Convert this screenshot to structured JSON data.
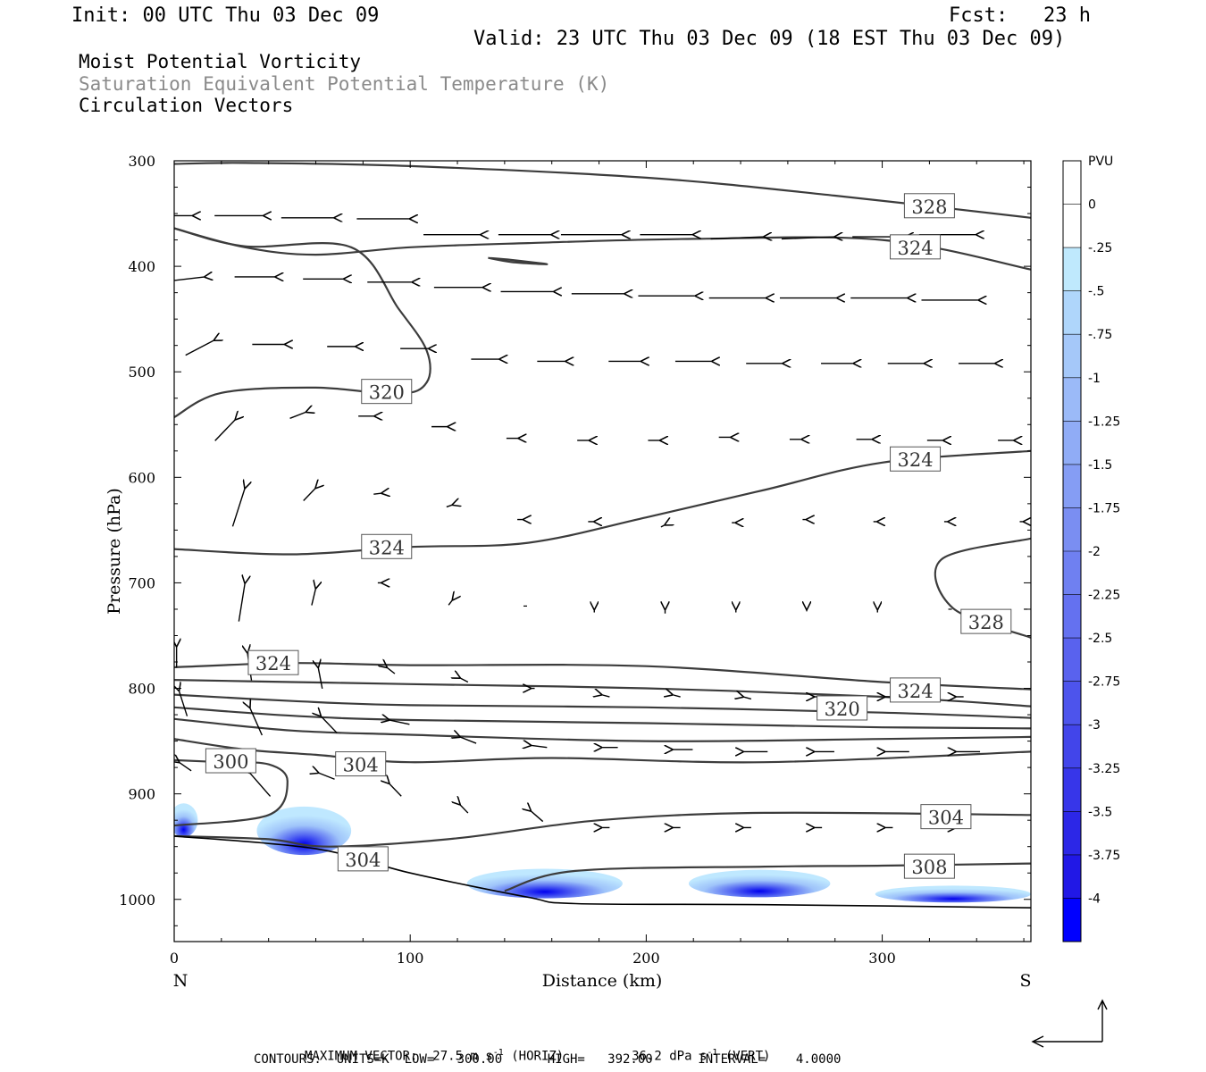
{
  "header": {
    "init": "Init: 00 UTC Thu 03 Dec 09",
    "fcst": "Fcst:   23 h",
    "valid": "Valid: 23 UTC Thu 03 Dec 09 (18 EST Thu 03 Dec 09)"
  },
  "fields": {
    "line1": "Moist Potential Vorticity",
    "line2": "Saturation Equivalent Potential Temperature (K)",
    "line3": "Circulation Vectors"
  },
  "footer": {
    "max_vector_label": "MAXIMUM VECTOR:",
    "max_h_val": "27.5 m s",
    "max_h_exp": "-1",
    "max_h_unit": "(HORIZ)",
    "max_v_val": "36.2 dPa s",
    "max_v_exp": "-1",
    "max_v_unit": "(VERT)",
    "contours": "CONTOURS:  UNITS=K  LOW=   300.00      HIGH=   392.00      INTERVAL=    4.0000"
  },
  "colors": {
    "contour": "#3c3c3c",
    "arrow": "#000000",
    "terrain": "#000000",
    "pv_light": "#b9e4ff",
    "pv_dark": "#0000ff"
  },
  "chart_data": {
    "type": "cross-section",
    "xlabel": "Distance (km)",
    "ylabel": "Pressure (hPa)",
    "xlim": [
      0,
      363
    ],
    "ylim": [
      1040,
      300
    ],
    "x_ticks": [
      0,
      100,
      200,
      300
    ],
    "y_ticks": [
      300,
      400,
      500,
      600,
      700,
      800,
      900,
      1000
    ],
    "x_end_labels": {
      "left": "N",
      "right": "S"
    },
    "colorbar": {
      "title": "PVU",
      "labels": [
        "0",
        "-.25",
        "-.5",
        "-.75",
        "-1",
        "-1.25",
        "-1.5",
        "-1.75",
        "-2",
        "-2.25",
        "-2.5",
        "-2.75",
        "-3",
        "-3.25",
        "-3.5",
        "-3.75",
        "-4"
      ],
      "colors": [
        "#ffffff",
        "#ffffff",
        "#bfe9fd",
        "#afd6fb",
        "#a5c8f9",
        "#9bbaf8",
        "#90acf6",
        "#859df4",
        "#7a8ef2",
        "#6f80f1",
        "#6471f0",
        "#5962ee",
        "#4d54ec",
        "#4245ea",
        "#3736e9",
        "#2c27e7",
        "#2118e6",
        "#0000ff"
      ]
    },
    "contour_labels": [
      {
        "text": "328",
        "x": 320,
        "p": 343
      },
      {
        "text": "324",
        "x": 314,
        "p": 382
      },
      {
        "text": "320",
        "x": 90,
        "p": 519
      },
      {
        "text": "324",
        "x": 314,
        "p": 583
      },
      {
        "text": "324",
        "x": 90,
        "p": 666
      },
      {
        "text": "328",
        "x": 344,
        "p": 737
      },
      {
        "text": "324",
        "x": 42,
        "p": 776
      },
      {
        "text": "324",
        "x": 314,
        "p": 802
      },
      {
        "text": "320",
        "x": 283,
        "p": 819
      },
      {
        "text": "300",
        "x": 24,
        "p": 869
      },
      {
        "text": "304",
        "x": 79,
        "p": 872
      },
      {
        "text": "304",
        "x": 327,
        "p": 922
      },
      {
        "text": "304",
        "x": 80,
        "p": 962
      },
      {
        "text": "308",
        "x": 320,
        "p": 969
      }
    ],
    "contours": [
      {
        "points": [
          [
            0,
            303
          ],
          [
            30,
            302
          ],
          [
            100,
            305
          ],
          [
            200,
            316
          ],
          [
            280,
            333
          ],
          [
            363,
            354
          ]
        ]
      },
      {
        "points": [
          [
            0,
            364
          ],
          [
            30,
            382
          ],
          [
            60,
            389
          ],
          [
            100,
            382
          ],
          [
            150,
            378
          ],
          [
            220,
            374
          ],
          [
            300,
            375
          ],
          [
            363,
            403
          ]
        ]
      },
      {
        "points": [
          [
            0,
            543
          ],
          [
            20,
            520
          ],
          [
            60,
            515
          ],
          [
            95,
            521
          ],
          [
            107,
            510
          ],
          [
            107,
            480
          ],
          [
            95,
            440
          ],
          [
            75,
            382
          ],
          [
            30,
            381
          ],
          [
            0,
            364
          ]
        ]
      },
      {
        "points": [
          [
            0,
            668
          ],
          [
            50,
            673
          ],
          [
            100,
            666
          ],
          [
            150,
            662
          ],
          [
            200,
            638
          ],
          [
            250,
            612
          ],
          [
            300,
            586
          ],
          [
            363,
            575
          ]
        ]
      },
      {
        "points": [
          [
            363,
            658
          ],
          [
            325,
            678
          ],
          [
            330,
            724
          ],
          [
            363,
            752
          ]
        ]
      },
      {
        "points": [
          [
            0,
            780
          ],
          [
            50,
            776
          ],
          [
            100,
            778
          ],
          [
            200,
            779
          ],
          [
            300,
            794
          ],
          [
            363,
            801
          ]
        ]
      },
      {
        "points": [
          [
            0,
            792
          ],
          [
            50,
            794
          ],
          [
            100,
            796
          ],
          [
            200,
            800
          ],
          [
            300,
            808
          ],
          [
            363,
            817
          ]
        ]
      },
      {
        "points": [
          [
            0,
            806
          ],
          [
            50,
            812
          ],
          [
            100,
            816
          ],
          [
            200,
            818
          ],
          [
            300,
            823
          ],
          [
            363,
            828
          ]
        ]
      },
      {
        "points": [
          [
            0,
            818
          ],
          [
            50,
            826
          ],
          [
            100,
            830
          ],
          [
            200,
            833
          ],
          [
            300,
            837
          ],
          [
            363,
            838
          ]
        ]
      },
      {
        "points": [
          [
            0,
            829
          ],
          [
            50,
            840
          ],
          [
            100,
            844
          ],
          [
            200,
            850
          ],
          [
            300,
            848
          ],
          [
            363,
            846
          ]
        ]
      },
      {
        "points": [
          [
            0,
            848
          ],
          [
            30,
            858
          ],
          [
            60,
            863
          ],
          [
            100,
            870
          ],
          [
            160,
            866
          ],
          [
            250,
            870
          ],
          [
            363,
            860
          ]
        ]
      },
      {
        "points": [
          [
            0,
            930
          ],
          [
            40,
            920
          ],
          [
            48,
            888
          ],
          [
            40,
            872
          ],
          [
            20,
            870
          ],
          [
            0,
            868
          ]
        ]
      },
      {
        "points": [
          [
            0,
            940
          ],
          [
            40,
            943
          ],
          [
            66,
            950
          ],
          [
            120,
            942
          ],
          [
            180,
            925
          ],
          [
            250,
            918
          ],
          [
            363,
            920
          ]
        ]
      },
      {
        "points": [
          [
            140,
            992
          ],
          [
            170,
            973
          ],
          [
            250,
            969
          ],
          [
            300,
            968
          ],
          [
            363,
            966
          ]
        ]
      },
      {
        "points": [
          [
            133,
            392
          ],
          [
            143,
            394
          ],
          [
            158,
            398
          ],
          [
            143,
            396
          ],
          [
            133,
            392
          ]
        ]
      }
    ],
    "terrain": [
      [
        0,
        940
      ],
      [
        60,
        952
      ],
      [
        100,
        975
      ],
      [
        150,
        998
      ],
      [
        170,
        1004
      ],
      [
        250,
        1005
      ],
      [
        363,
        1008
      ]
    ],
    "pv_blobs": [
      {
        "center": [
          4,
          925
        ],
        "rx": 6,
        "rp": 16
      },
      {
        "center": [
          55,
          935
        ],
        "rx": 20,
        "rp": 23
      },
      {
        "center": [
          157,
          985
        ],
        "rx": 33,
        "rp": 14
      },
      {
        "center": [
          248,
          985
        ],
        "rx": 30,
        "rp": 13
      },
      {
        "center": [
          330,
          995
        ],
        "rx": 33,
        "rp": 8
      }
    ],
    "vectors": [
      [
        8,
        352,
        -22,
        0
      ],
      [
        38,
        352,
        -24,
        0
      ],
      [
        68,
        354,
        -26,
        0
      ],
      [
        100,
        355,
        -26,
        0
      ],
      [
        130,
        370,
        -28,
        0
      ],
      [
        160,
        370,
        -26,
        0
      ],
      [
        190,
        370,
        -30,
        0
      ],
      [
        220,
        370,
        -26,
        0
      ],
      [
        250,
        372,
        -26,
        2
      ],
      [
        280,
        372,
        -26,
        2
      ],
      [
        310,
        372,
        -26,
        0
      ],
      [
        340,
        370,
        -28,
        0
      ],
      [
        13,
        410,
        -18,
        4
      ],
      [
        43,
        410,
        -20,
        0
      ],
      [
        72,
        412,
        -20,
        0
      ],
      [
        101,
        415,
        -22,
        0
      ],
      [
        131,
        420,
        -24,
        0
      ],
      [
        161,
        424,
        -26,
        0
      ],
      [
        191,
        426,
        -26,
        0
      ],
      [
        221,
        428,
        -28,
        0
      ],
      [
        251,
        430,
        -28,
        0
      ],
      [
        281,
        430,
        -28,
        0
      ],
      [
        311,
        430,
        -28,
        0
      ],
      [
        341,
        432,
        -28,
        0
      ],
      [
        17,
        470,
        -14,
        14
      ],
      [
        47,
        474,
        -16,
        0
      ],
      [
        77,
        476,
        -14,
        0
      ],
      [
        108,
        478,
        -14,
        0
      ],
      [
        138,
        488,
        -14,
        0
      ],
      [
        166,
        490,
        -14,
        0
      ],
      [
        198,
        490,
        -16,
        0
      ],
      [
        228,
        490,
        -18,
        0
      ],
      [
        258,
        492,
        -18,
        0
      ],
      [
        288,
        492,
        -16,
        0
      ],
      [
        318,
        492,
        -18,
        0
      ],
      [
        348,
        492,
        -18,
        0
      ],
      [
        26,
        545,
        -10,
        20
      ],
      [
        56,
        538,
        -8,
        6
      ],
      [
        85,
        542,
        -8,
        0
      ],
      [
        116,
        552,
        -8,
        0
      ],
      [
        146,
        563,
        -6,
        0
      ],
      [
        176,
        565,
        -6,
        0
      ],
      [
        206,
        565,
        -6,
        0
      ],
      [
        236,
        562,
        -6,
        0
      ],
      [
        266,
        564,
        -6,
        0
      ],
      [
        296,
        564,
        -8,
        0
      ],
      [
        326,
        565,
        -8,
        0
      ],
      [
        356,
        565,
        -8,
        0
      ],
      [
        30,
        610,
        -6,
        36
      ],
      [
        60,
        610,
        -6,
        12
      ],
      [
        88,
        615,
        -4,
        1
      ],
      [
        118,
        626,
        -3,
        2
      ],
      [
        148,
        640,
        -3,
        0
      ],
      [
        178,
        642,
        -3,
        0
      ],
      [
        208,
        645,
        -2,
        2
      ],
      [
        238,
        643,
        -2,
        0
      ],
      [
        268,
        640,
        -2,
        0
      ],
      [
        298,
        642,
        -2,
        0
      ],
      [
        328,
        642,
        -2,
        0
      ],
      [
        360,
        642,
        -2,
        0
      ],
      [
        30,
        700,
        -3,
        36
      ],
      [
        60,
        705,
        -2,
        16
      ],
      [
        88,
        700,
        -2,
        0
      ],
      [
        118,
        716,
        -2,
        5
      ],
      [
        148,
        722,
        0,
        0
      ],
      [
        178,
        725,
        0,
        3
      ],
      [
        208,
        725,
        0,
        4
      ],
      [
        238,
        725,
        0,
        3
      ],
      [
        268,
        725,
        0,
        2
      ],
      [
        298,
        725,
        0,
        3
      ],
      [
        328,
        725,
        0,
        0
      ],
      [
        360,
        725,
        0,
        0
      ],
      [
        1,
        760,
        0,
        20
      ],
      [
        31,
        766,
        2,
        26
      ],
      [
        61,
        780,
        2,
        20
      ],
      [
        90,
        780,
        4,
        6
      ],
      [
        121,
        790,
        4,
        4
      ],
      [
        151,
        800,
        2,
        0
      ],
      [
        181,
        806,
        4,
        2
      ],
      [
        211,
        806,
        4,
        2
      ],
      [
        241,
        808,
        4,
        2
      ],
      [
        271,
        808,
        2,
        0
      ],
      [
        301,
        808,
        4,
        0
      ],
      [
        331,
        808,
        4,
        0
      ],
      [
        2,
        802,
        4,
        24
      ],
      [
        32,
        818,
        6,
        26
      ],
      [
        62,
        826,
        8,
        16
      ],
      [
        91,
        830,
        10,
        4
      ],
      [
        121,
        846,
        8,
        6
      ],
      [
        151,
        854,
        8,
        2
      ],
      [
        181,
        856,
        8,
        0
      ],
      [
        211,
        858,
        10,
        0
      ],
      [
        241,
        860,
        12,
        0
      ],
      [
        271,
        860,
        10,
        0
      ],
      [
        301,
        860,
        12,
        0
      ],
      [
        331,
        860,
        12,
        0
      ],
      [
        2,
        870,
        6,
        8
      ],
      [
        32,
        880,
        10,
        22
      ],
      [
        61,
        880,
        8,
        6
      ],
      [
        91,
        890,
        6,
        12
      ],
      [
        121,
        910,
        4,
        8
      ],
      [
        151,
        916,
        6,
        10
      ],
      [
        181,
        932,
        4,
        0
      ],
      [
        211,
        932,
        4,
        0
      ],
      [
        241,
        932,
        4,
        0
      ],
      [
        271,
        932,
        4,
        0
      ],
      [
        301,
        932,
        4,
        0
      ],
      [
        331,
        932,
        4,
        0
      ]
    ]
  }
}
